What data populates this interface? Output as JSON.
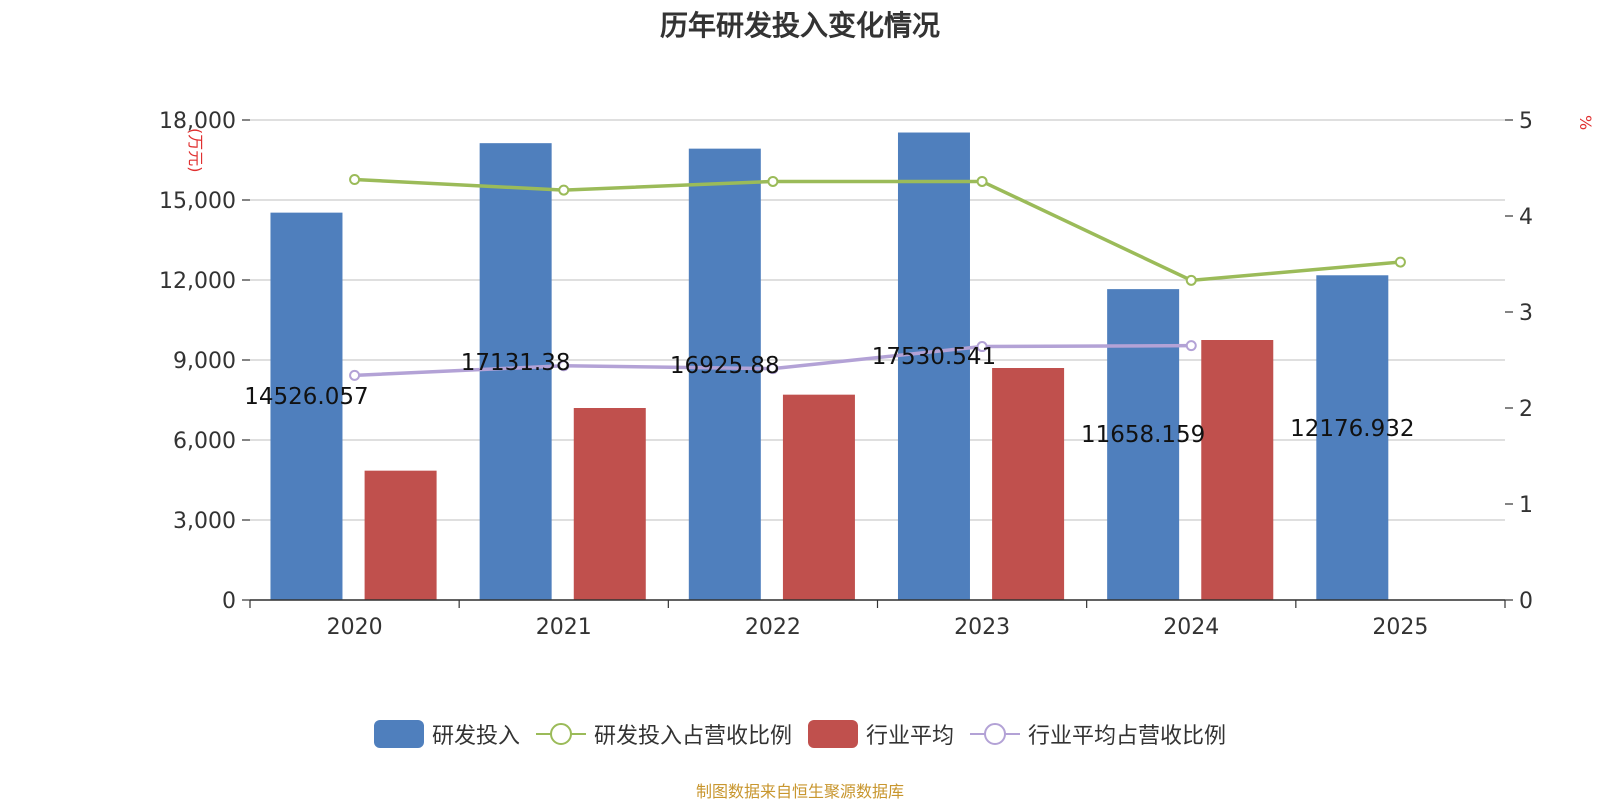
{
  "chart_data": {
    "type": "bar",
    "title": "历年研发投入变化情况",
    "categories": [
      "2020",
      "2021",
      "2022",
      "2023",
      "2024",
      "2025"
    ],
    "y_left": {
      "label": "(万元)",
      "ylim": [
        0,
        18000
      ],
      "ticks": [
        "0",
        "3,000",
        "6,000",
        "9,000",
        "12,000",
        "15,000",
        "18,000"
      ]
    },
    "y_right": {
      "label": "%",
      "ylim": [
        0,
        5
      ],
      "ticks": [
        "0",
        "1",
        "2",
        "3",
        "4",
        "5"
      ]
    },
    "series": [
      {
        "name": "研发投入",
        "type": "bar",
        "axis": "left",
        "color": "#4f7fbd",
        "values": [
          14526.057,
          17131.38,
          16925.88,
          17530.541,
          11658.159,
          12176.932
        ],
        "labels": [
          "14526.057",
          "17131.38",
          "16925.88",
          "17530.541",
          "11658.159",
          "12176.932"
        ]
      },
      {
        "name": "研发投入占营收比例",
        "type": "line",
        "axis": "right",
        "color": "#9bbb59",
        "values": [
          4.38,
          4.27,
          4.36,
          4.36,
          3.33,
          3.52
        ]
      },
      {
        "name": "行业平均",
        "type": "bar",
        "axis": "left",
        "color": "#c0504d",
        "values": [
          4850,
          7200,
          7700,
          8700,
          9750,
          null
        ]
      },
      {
        "name": "行业平均占营收比例",
        "type": "line",
        "axis": "right",
        "color": "#b3a2d6",
        "values": [
          2.34,
          2.44,
          2.41,
          2.64,
          2.65,
          null
        ]
      }
    ],
    "grid": true,
    "legend_position": "bottom"
  },
  "source": "制图数据来自恒生聚源数据库"
}
